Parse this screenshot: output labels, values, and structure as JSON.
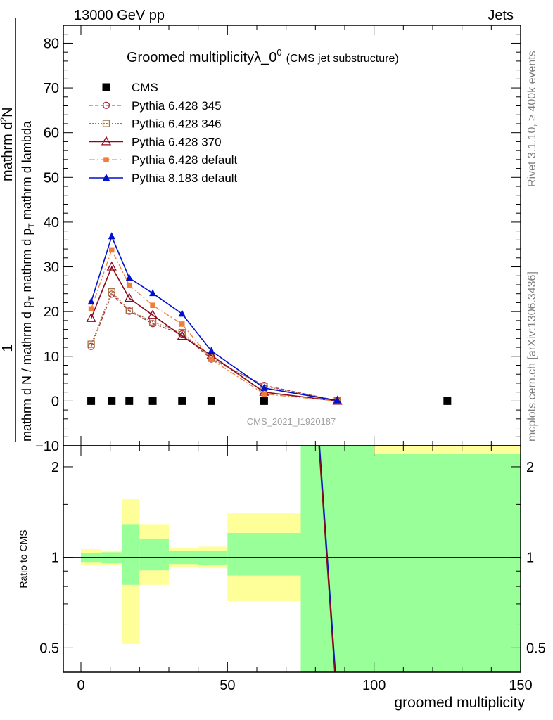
{
  "header": {
    "energy_label": "13000 GeV pp",
    "process_label": "Jets"
  },
  "side_labels": {
    "rivet": "Rivet 3.1.10, ≥ 400k events",
    "mcplots": "mcplots.cern.ch [arXiv:1306.3436]"
  },
  "watermark": "CMS_2021_I1920187",
  "colors": {
    "cms": "#000000",
    "p345": "#b03040",
    "p346": "#a07840",
    "p370": "#8b0a1e",
    "pdef6": "#f07e3a",
    "pdef8": "#0010cc",
    "band_inner": "#99ff99",
    "band_outer": "#ffff99"
  },
  "chart_data": [
    {
      "type": "line",
      "panel": "main",
      "title_main": "Groomed multiplicity",
      "title_lambda": "λ_0",
      "title_sup": "0",
      "title_sub": "(CMS jet substructure)",
      "ylabel_top": "1",
      "ylabel_num": "mathrm d",
      "ylabel_num_sup": "2",
      "ylabel_num_end": "N",
      "ylabel_den": "mathrm d N / mathrm d p",
      "ylabel_den_sub": "T",
      "ylabel_den2": "mathrm d p",
      "ylabel_den2_sub": "T",
      "ylabel_den3": "mathrm d lambda",
      "ylim": [
        -10,
        84
      ],
      "xlim": [
        -6,
        150
      ],
      "yticks": [
        -10,
        0,
        10,
        20,
        30,
        40,
        50,
        60,
        70,
        80
      ],
      "ytick_labels": [
        "−10",
        "0",
        "10",
        "20",
        "30",
        "40",
        "50",
        "60",
        "70",
        "80"
      ],
      "series": [
        {
          "id": "cms",
          "name": "CMS",
          "x": [
            3.5,
            10.5,
            16.5,
            24.5,
            34.5,
            44.5,
            62.5,
            125
          ],
          "y": [
            0,
            0,
            0,
            0,
            0,
            0,
            0,
            0
          ]
        },
        {
          "id": "p345",
          "name": "Pythia 6.428 345",
          "x": [
            3.5,
            10.5,
            16.5,
            24.5,
            34.5,
            44.5,
            62.5,
            87.5
          ],
          "y": [
            12.2,
            23.9,
            20.1,
            17.3,
            15.0,
            9.4,
            3.5,
            0.1
          ]
        },
        {
          "id": "p346",
          "name": "Pythia 6.428 346",
          "x": [
            3.5,
            10.5,
            16.5,
            24.5,
            34.5,
            44.5,
            62.5,
            87.5
          ],
          "y": [
            12.7,
            24.4,
            20.3,
            17.7,
            15.3,
            9.6,
            3.3,
            0.1
          ]
        },
        {
          "id": "p370",
          "name": "Pythia 6.428 370",
          "x": [
            3.5,
            10.5,
            16.5,
            24.5,
            34.5,
            44.5,
            62.5,
            87.5
          ],
          "y": [
            18.5,
            30.0,
            23.0,
            19.2,
            14.5,
            10.2,
            2.0,
            0.0
          ]
        },
        {
          "id": "pdef6",
          "name": "Pythia 6.428 default",
          "x": [
            3.5,
            10.5,
            16.5,
            24.5,
            34.5,
            44.5,
            62.5,
            87.5
          ],
          "y": [
            20.6,
            33.8,
            25.9,
            21.4,
            17.2,
            9.3,
            1.6,
            0.0
          ]
        },
        {
          "id": "pdef8",
          "name": "Pythia 8.183 default",
          "x": [
            3.5,
            10.5,
            16.5,
            24.5,
            34.5,
            44.5,
            62.5,
            87.5
          ],
          "y": [
            22.2,
            36.8,
            27.5,
            24.1,
            19.5,
            11.2,
            2.9,
            0.1
          ]
        }
      ]
    },
    {
      "type": "line",
      "panel": "ratio",
      "ylabel": "Ratio to CMS",
      "xlabel": "groomed multiplicity",
      "ylim_log": [
        0.415,
        2.35
      ],
      "xlim": [
        -6,
        150
      ],
      "xticks": [
        0,
        50,
        100,
        150
      ],
      "xtick_labels": [
        "0",
        "50",
        "100",
        "150"
      ],
      "yticks": [
        0.5,
        1,
        2
      ],
      "ytick_labels": [
        "0.5",
        "1",
        "2"
      ],
      "reference": 1.0,
      "bands": [
        {
          "x0": 0,
          "x1": 7,
          "outer_lo": 0.945,
          "outer_hi": 1.065,
          "inner_lo": 0.965,
          "inner_hi": 1.035
        },
        {
          "x0": 7,
          "x1": 14,
          "outer_lo": 0.94,
          "outer_hi": 1.055,
          "inner_lo": 0.955,
          "inner_hi": 1.04
        },
        {
          "x0": 14,
          "x1": 20,
          "outer_lo": 0.515,
          "outer_hi": 1.56,
          "inner_lo": 0.81,
          "inner_hi": 1.29
        },
        {
          "x0": 20,
          "x1": 30,
          "outer_lo": 0.81,
          "outer_hi": 1.29,
          "inner_lo": 0.905,
          "inner_hi": 1.155
        },
        {
          "x0": 30,
          "x1": 40,
          "outer_lo": 0.93,
          "outer_hi": 1.075,
          "inner_lo": 0.95,
          "inner_hi": 1.05
        },
        {
          "x0": 40,
          "x1": 50,
          "outer_lo": 0.92,
          "outer_hi": 1.085,
          "inner_lo": 0.945,
          "inner_hi": 1.05
        },
        {
          "x0": 50,
          "x1": 75,
          "outer_lo": 0.715,
          "outer_hi": 1.4,
          "inner_lo": 0.87,
          "inner_hi": 1.205
        },
        {
          "x0": 75,
          "x1": 100,
          "outer_lo": 0.3,
          "outer_hi": 3.0,
          "inner_lo": 0.3,
          "inner_hi": 3.0
        },
        {
          "x0": 100,
          "x1": 150,
          "outer_lo": 0.3,
          "outer_hi": 3.0,
          "inner_lo": 0.3,
          "inner_hi": 2.21
        }
      ],
      "ratio_lines": [
        {
          "id": "pdef8",
          "x": [
            81.4,
            86.8
          ],
          "y": [
            2.35,
            0.415
          ]
        },
        {
          "id": "p370",
          "x": [
            81.2,
            86.6
          ],
          "y": [
            2.35,
            0.415
          ]
        }
      ]
    }
  ]
}
